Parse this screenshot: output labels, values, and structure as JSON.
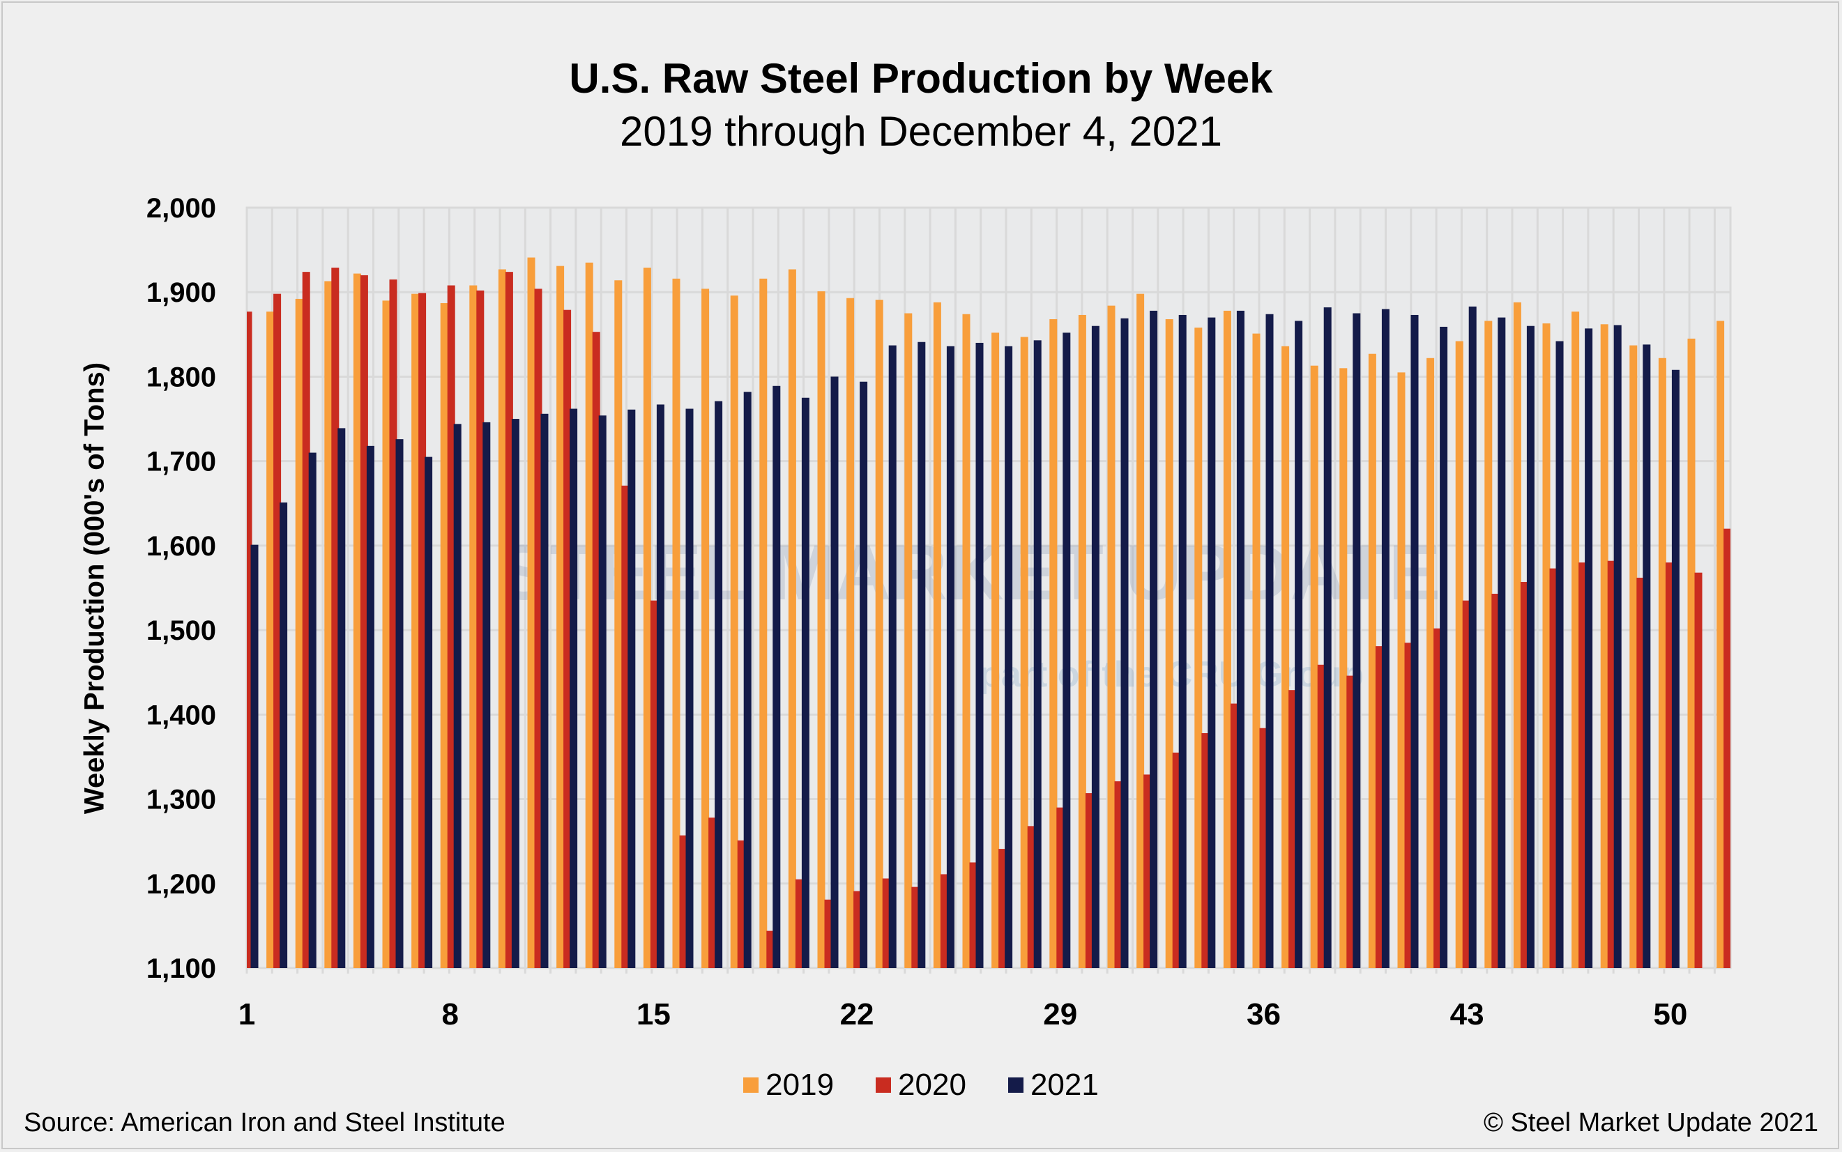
{
  "colors": {
    "2019": "#f89e3b",
    "2020": "#c92c20",
    "2021": "#141b49",
    "plot_bg": "#e9eaeb",
    "grid": "#d9d9d9"
  },
  "footer": {
    "source": "Source: American Iron and Steel Institute",
    "copyright": "© Steel Market Update 2021"
  },
  "watermark": {
    "line1": "STEEL MARKET UPDATE",
    "line2": "part of the CRU Group"
  },
  "chart_data": {
    "type": "bar",
    "title": "U.S. Raw Steel Production by Week",
    "subtitle": "2019 through December 4, 2021",
    "xlabel": "",
    "ylabel": "Weekly Production (000's of Tons)",
    "ylim": [
      1100,
      2000
    ],
    "yticks": [
      "1,100",
      "1,200",
      "1,300",
      "1,400",
      "1,500",
      "1,600",
      "1,700",
      "1,800",
      "1,900",
      "2,000"
    ],
    "xtick_labels": [
      "1",
      "8",
      "15",
      "22",
      "29",
      "36",
      "43",
      "50"
    ],
    "grid": true,
    "legend": "bottom",
    "categories": [
      1,
      2,
      3,
      4,
      5,
      6,
      7,
      8,
      9,
      10,
      11,
      12,
      13,
      14,
      15,
      16,
      17,
      18,
      19,
      20,
      21,
      22,
      23,
      24,
      25,
      26,
      27,
      28,
      29,
      30,
      31,
      32,
      33,
      34,
      35,
      36,
      37,
      38,
      39,
      40,
      41,
      42,
      43,
      44,
      45,
      46,
      47,
      48,
      49,
      50,
      51,
      52
    ],
    "series": [
      {
        "name": "2019",
        "values": [
          null,
          1877,
          1892,
          1913,
          1922,
          1890,
          1898,
          1887,
          1908,
          1927,
          1941,
          1931,
          1935,
          1914,
          1929,
          1916,
          1904,
          1896,
          1916,
          1927,
          1901,
          1893,
          1891,
          1875,
          1888,
          1874,
          1852,
          1847,
          1868,
          1873,
          1884,
          1898,
          1868,
          1858,
          1878,
          1851,
          1836,
          1813,
          1810,
          1827,
          1805,
          1822,
          1842,
          1866,
          1888,
          1863,
          1877,
          1862,
          1837,
          1822,
          1845,
          1866
        ]
      },
      {
        "name": "2020",
        "values": [
          1877,
          1898,
          1924,
          1929,
          1920,
          1915,
          1899,
          1908,
          1902,
          1924,
          1904,
          1879,
          1853,
          1671,
          1535,
          1257,
          1278,
          1251,
          1144,
          1205,
          1181,
          1191,
          1206,
          1196,
          1211,
          1225,
          1241,
          1268,
          1290,
          1307,
          1321,
          1329,
          1355,
          1378,
          1413,
          1384,
          1429,
          1459,
          1446,
          1481,
          1485,
          1502,
          1535,
          1543,
          1557,
          1573,
          1580,
          1582,
          1562,
          1580,
          1568,
          1620
        ]
      },
      {
        "name": "2021",
        "values": [
          1601,
          1651,
          1710,
          1739,
          1718,
          1726,
          1705,
          1744,
          1746,
          1750,
          1756,
          1762,
          1754,
          1761,
          1767,
          1762,
          1771,
          1782,
          1789,
          1775,
          1800,
          1794,
          1837,
          1841,
          1836,
          1840,
          1836,
          1843,
          1852,
          1860,
          1869,
          1878,
          1873,
          1870,
          1878,
          1874,
          1866,
          1882,
          1875,
          1880,
          1873,
          1859,
          1883,
          1870,
          1860,
          1842,
          1857,
          1861,
          1838,
          1808,
          null,
          null
        ]
      }
    ]
  }
}
